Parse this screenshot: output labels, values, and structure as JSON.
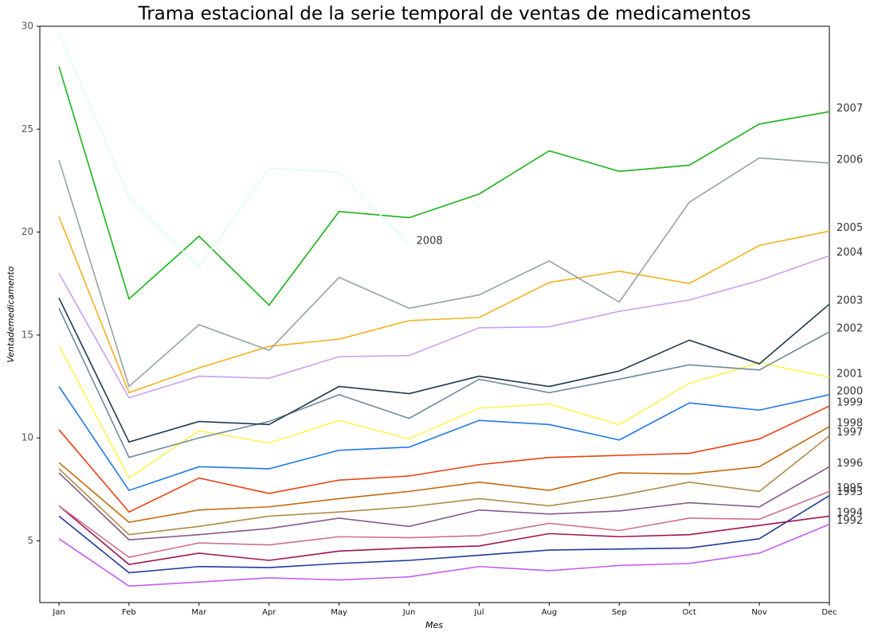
{
  "chart_data": {
    "type": "line",
    "title": "Trama estacional de la serie temporal de ventas de medicamentos",
    "x_label": "Mes",
    "y_label": "Ventademedicamento",
    "categories": [
      "Jan",
      "Feb",
      "Mar",
      "Apr",
      "May",
      "Jun",
      "Jul",
      "Aug",
      "Sep",
      "Oct",
      "Nov",
      "Dec"
    ],
    "ylim": [
      2,
      30
    ],
    "yticks": [
      5,
      10,
      15,
      20,
      25,
      30
    ],
    "series": [
      {
        "name": "1992",
        "color": "#c45cf2",
        "values": [
          5.1,
          2.8,
          3.0,
          3.2,
          3.1,
          3.25,
          3.75,
          3.55,
          3.8,
          3.9,
          4.4,
          5.8
        ]
      },
      {
        "name": "1993",
        "color": "#1f3a9e",
        "values": [
          6.2,
          3.45,
          3.75,
          3.7,
          3.9,
          4.05,
          4.3,
          4.55,
          4.6,
          4.65,
          5.1,
          7.2
        ]
      },
      {
        "name": "1994",
        "color": "#a0134f",
        "values": [
          6.7,
          3.85,
          4.4,
          4.05,
          4.5,
          4.65,
          4.75,
          5.35,
          5.2,
          5.3,
          5.75,
          6.2
        ]
      },
      {
        "name": "1995",
        "color": "#d0708b",
        "values": [
          6.7,
          4.2,
          4.9,
          4.8,
          5.2,
          5.15,
          5.25,
          5.85,
          5.5,
          6.1,
          6.05,
          7.4
        ]
      },
      {
        "name": "1996",
        "color": "#875a8a",
        "values": [
          8.3,
          5.05,
          5.3,
          5.6,
          6.1,
          5.7,
          6.5,
          6.3,
          6.45,
          6.85,
          6.65,
          8.6
        ]
      },
      {
        "name": "1997",
        "color": "#b08a48",
        "values": [
          8.5,
          5.3,
          5.7,
          6.2,
          6.4,
          6.65,
          7.05,
          6.7,
          7.2,
          7.85,
          7.4,
          10.1
        ]
      },
      {
        "name": "1998",
        "color": "#c46a0a",
        "values": [
          8.8,
          5.9,
          6.5,
          6.65,
          7.05,
          7.4,
          7.85,
          7.45,
          8.3,
          8.25,
          8.6,
          10.55
        ]
      },
      {
        "name": "1999",
        "color": "#ee3f13",
        "values": [
          10.4,
          6.4,
          8.05,
          7.3,
          7.95,
          8.15,
          8.7,
          9.05,
          9.15,
          9.25,
          9.95,
          11.55
        ]
      },
      {
        "name": "2000",
        "color": "#2277e6",
        "values": [
          12.5,
          7.45,
          8.6,
          8.5,
          9.4,
          9.55,
          10.85,
          10.65,
          9.9,
          11.7,
          11.35,
          12.1
        ]
      },
      {
        "name": "2001",
        "color": "#fff44f",
        "values": [
          14.5,
          8.05,
          10.35,
          9.75,
          10.85,
          9.95,
          11.45,
          11.65,
          10.65,
          12.65,
          13.65,
          12.95
        ]
      },
      {
        "name": "2002",
        "color": "#708a99",
        "values": [
          16.3,
          9.05,
          10.0,
          10.8,
          12.1,
          10.95,
          12.85,
          12.2,
          12.85,
          13.55,
          13.3,
          15.15
        ]
      },
      {
        "name": "2003",
        "color": "#1f3a4a",
        "values": [
          16.8,
          9.8,
          10.8,
          10.65,
          12.5,
          12.15,
          13.0,
          12.5,
          13.25,
          14.75,
          13.6,
          16.5
        ]
      },
      {
        "name": "2004",
        "color": "#c9a0f2",
        "values": [
          18.0,
          11.95,
          13.0,
          12.9,
          13.95,
          14.0,
          15.35,
          15.4,
          16.15,
          16.7,
          17.65,
          18.85
        ]
      },
      {
        "name": "2005",
        "color": "#f8b01b",
        "values": [
          20.75,
          12.2,
          13.4,
          14.45,
          14.8,
          15.7,
          15.85,
          17.55,
          18.1,
          17.5,
          19.35,
          20.05
        ]
      },
      {
        "name": "2006",
        "color": "#95a3a1",
        "values": [
          23.5,
          12.5,
          15.5,
          14.25,
          17.8,
          16.3,
          16.95,
          18.6,
          16.6,
          21.45,
          23.6,
          23.35
        ]
      },
      {
        "name": "2007",
        "color": "#19b319",
        "values": [
          28.05,
          16.75,
          19.8,
          16.45,
          21.0,
          20.7,
          21.85,
          23.95,
          22.95,
          23.25,
          25.25,
          25.85
        ]
      },
      {
        "name": "2008",
        "color": "#dcfff2",
        "values": [
          29.7,
          21.7,
          18.3,
          23.1,
          22.9,
          19.4,
          null,
          null,
          null,
          null,
          null,
          null
        ]
      }
    ]
  }
}
